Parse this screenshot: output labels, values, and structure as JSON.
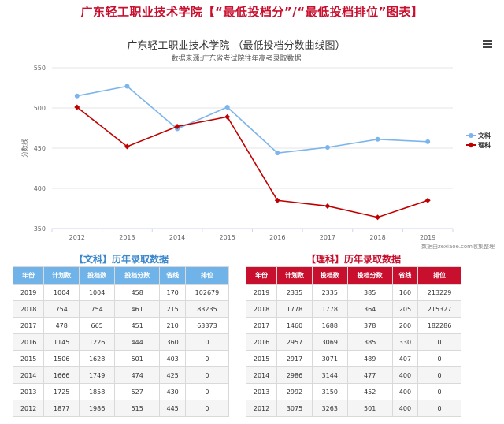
{
  "header": {
    "title": "广东轻工职业技术学院【“最低投档分”/“最低投档排位”图表】"
  },
  "chart_data": {
    "type": "line",
    "title": "广东轻工职业技术学院  （最低投档分数曲线图）",
    "subtitle": "数据来源:广东省考试院往年高考录取数据",
    "ylabel": "分数线",
    "xlabel": "",
    "x": [
      "2012",
      "2013",
      "2014",
      "2015",
      "2016",
      "2017",
      "2018",
      "2019"
    ],
    "ylim": [
      350,
      550
    ],
    "yticks": [
      350,
      400,
      450,
      500,
      550
    ],
    "grid": true,
    "legend_position": "right",
    "series": [
      {
        "name": "文科",
        "color": "#7cb5ec",
        "marker": "circle",
        "values": [
          515,
          527,
          474,
          501,
          444,
          451,
          461,
          458
        ]
      },
      {
        "name": "理科",
        "color": "#c00000",
        "marker": "diamond",
        "values": [
          501,
          452,
          477,
          489,
          385,
          378,
          364,
          385
        ]
      }
    ],
    "credit": "数据由zexiaoe.com收集整理"
  },
  "tables": {
    "wenke": {
      "title": "【文科】历年录取数据",
      "header_color": "#6fb3e8",
      "headers": [
        "年份",
        "计划数",
        "投档数",
        "投档分数",
        "省线",
        "排位"
      ],
      "rows": [
        [
          "2019",
          "1004",
          "1004",
          "458",
          "170",
          "102679"
        ],
        [
          "2018",
          "754",
          "754",
          "461",
          "215",
          "83235"
        ],
        [
          "2017",
          "478",
          "665",
          "451",
          "210",
          "63373"
        ],
        [
          "2016",
          "1145",
          "1226",
          "444",
          "360",
          "0"
        ],
        [
          "2015",
          "1506",
          "1628",
          "501",
          "403",
          "0"
        ],
        [
          "2014",
          "1666",
          "1749",
          "474",
          "425",
          "0"
        ],
        [
          "2013",
          "1725",
          "1858",
          "527",
          "430",
          "0"
        ],
        [
          "2012",
          "1877",
          "1986",
          "515",
          "445",
          "0"
        ]
      ]
    },
    "like": {
      "title": "【理科】历年录取数据",
      "header_color": "#c8102e",
      "headers": [
        "年份",
        "计划数",
        "投档数",
        "投档分数",
        "省线",
        "排位"
      ],
      "rows": [
        [
          "2019",
          "2335",
          "2335",
          "385",
          "160",
          "213229"
        ],
        [
          "2018",
          "1778",
          "1778",
          "364",
          "205",
          "215327"
        ],
        [
          "2017",
          "1460",
          "1688",
          "378",
          "200",
          "182286"
        ],
        [
          "2016",
          "2957",
          "3069",
          "385",
          "330",
          "0"
        ],
        [
          "2015",
          "2917",
          "3071",
          "489",
          "407",
          "0"
        ],
        [
          "2014",
          "2986",
          "3144",
          "477",
          "400",
          "0"
        ],
        [
          "2013",
          "2992",
          "3150",
          "452",
          "400",
          "0"
        ],
        [
          "2012",
          "3075",
          "3263",
          "501",
          "400",
          "0"
        ]
      ]
    }
  }
}
